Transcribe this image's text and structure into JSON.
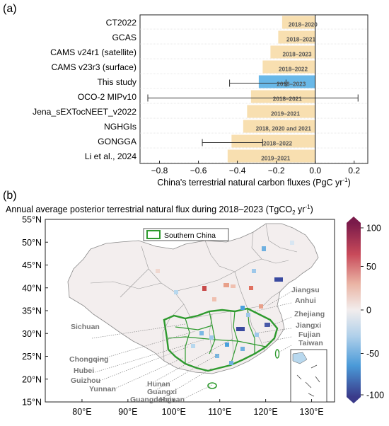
{
  "panel_a": {
    "label": "(a)",
    "xlabel_main": "China's terrestrial natural carbon fluxes (PgC yr",
    "xlabel_sup": "-1",
    "xlabel_end": ")"
  },
  "panel_b": {
    "label": "(b)",
    "title_main": "Annual average posterior terrestrial natural flux during 2018–2023 (TgCO",
    "title_sub": "2",
    "title_mid": " yr",
    "title_sup": "-1",
    "title_end": ")",
    "legend_label": "Southern China",
    "lat_labels": [
      "55°N",
      "50°N",
      "45°N",
      "40°N",
      "35°N",
      "30°N",
      "25°N",
      "20°N",
      "15°N"
    ],
    "lon_labels": [
      "80°E",
      "90°E",
      "100°E",
      "110°E",
      "120°E",
      "130°E"
    ],
    "colorbar_ticks": [
      "100",
      "50",
      "0",
      "-50",
      "-100"
    ],
    "province_labels_left": [
      "Sichuan",
      "Chongqing",
      "Hubei",
      "Guizhou",
      "Yunnan",
      "Hunan",
      "Guangxi",
      "Guangdong",
      "Hainan"
    ],
    "province_labels_right": [
      "Jiangsu",
      "Anhui",
      "Zhejiang",
      "Jiangxi",
      "Fujian",
      "Taiwan"
    ]
  },
  "colors": {
    "bar_default": "#f8dfb0",
    "bar_highlight": "#69b8e8",
    "southern_china_outline": "#2e9a2e",
    "map_boundary": "#888888"
  },
  "chart_data": [
    {
      "type": "bar",
      "orientation": "horizontal",
      "categories": [
        "CT2022",
        "GCAS",
        "CAMS v24r1 (satellite)",
        "CAMS v23r3 (surface)",
        "This study",
        "OCO-2 MIPv10",
        "Jena_sEXTocNEET_v2022",
        "NGHGIs",
        "GONGGA",
        "Li et al., 2024"
      ],
      "values": [
        -0.17,
        -0.19,
        -0.23,
        -0.27,
        -0.29,
        -0.33,
        -0.35,
        -0.37,
        -0.43,
        -0.45
      ],
      "error_bars": [
        null,
        null,
        null,
        null,
        [
          -0.44,
          -0.15
        ],
        [
          -0.86,
          0.22
        ],
        null,
        null,
        [
          -0.58,
          -0.27
        ],
        null
      ],
      "period_labels": [
        "2018–2020",
        "2018–2021",
        "2018–2023",
        "2018–2022",
        "2018–2023",
        "2018–2021",
        "2019–2021",
        "2018, 2020 and 2021",
        "2018–2022",
        "2019–2021"
      ],
      "highlight": "This study",
      "xticks": [
        -0.8,
        -0.6,
        -0.4,
        -0.2,
        0.0,
        0.2
      ],
      "xtick_labels": [
        "−0.8",
        "−0.6",
        "−0.4",
        "−0.2",
        "0.0",
        "0.2"
      ],
      "xlim": [
        -0.9,
        0.27
      ]
    },
    {
      "type": "heatmap",
      "colorbar_range": [
        -100,
        100
      ],
      "lat_range": [
        15,
        55
      ],
      "lon_range": [
        72,
        135
      ],
      "colormap": [
        "#3a4aa0",
        "#4aa0dd",
        "#f2eded",
        "#e07060",
        "#8e1d4f"
      ]
    }
  ]
}
